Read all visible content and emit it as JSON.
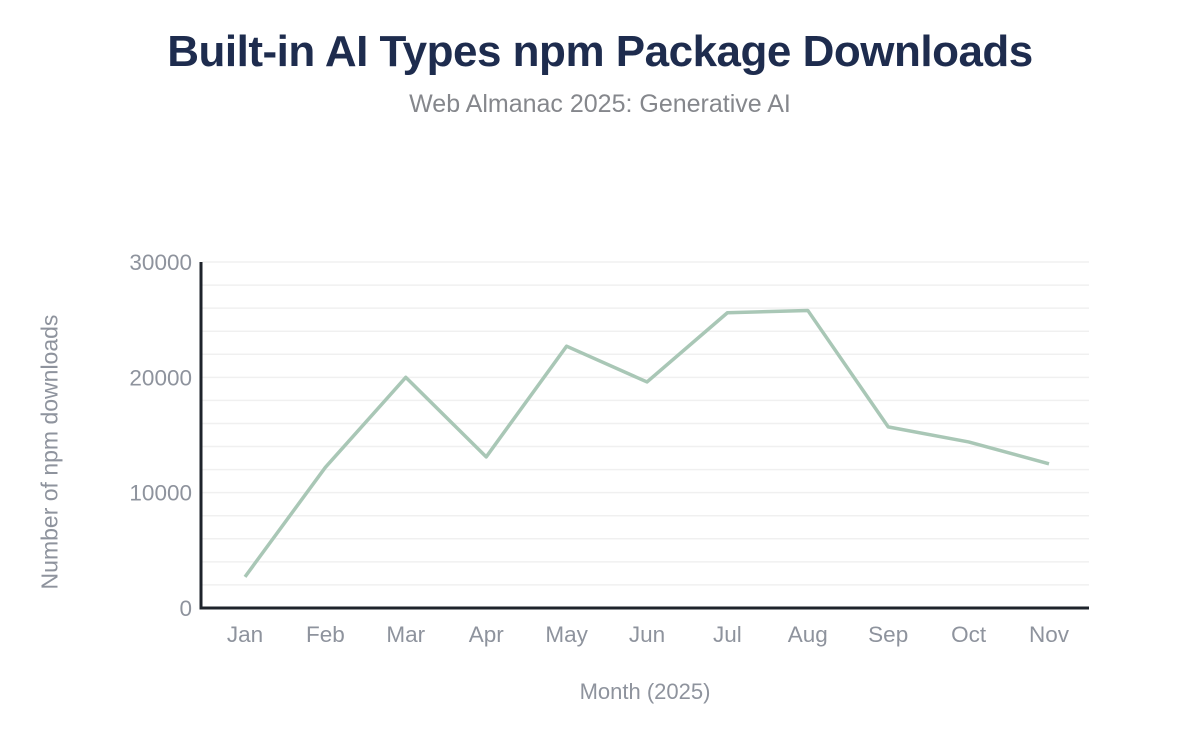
{
  "chart_data": {
    "type": "line",
    "title": "Built-in AI Types npm Package Downloads",
    "subtitle": "Web Almanac 2025: Generative AI",
    "xlabel": "Month (2025)",
    "ylabel": "Number of npm downloads",
    "categories": [
      "Jan",
      "Feb",
      "Mar",
      "Apr",
      "May",
      "Jun",
      "Jul",
      "Aug",
      "Sep",
      "Oct",
      "Nov"
    ],
    "values": [
      2700,
      12200,
      20000,
      13100,
      22700,
      19600,
      25600,
      25800,
      15700,
      14400,
      12500
    ],
    "ylim": [
      0,
      30000
    ],
    "yticks": [
      0,
      10000,
      20000,
      30000
    ],
    "grid": {
      "show": true,
      "interval": 2000
    },
    "legend": "none",
    "colors": {
      "line": "#a9c7b6",
      "axis": "#1e232b",
      "grid": "#f0f0f0",
      "title": "#1e2c4e",
      "subtitle": "#85878c",
      "tick": "#8e939d"
    }
  }
}
